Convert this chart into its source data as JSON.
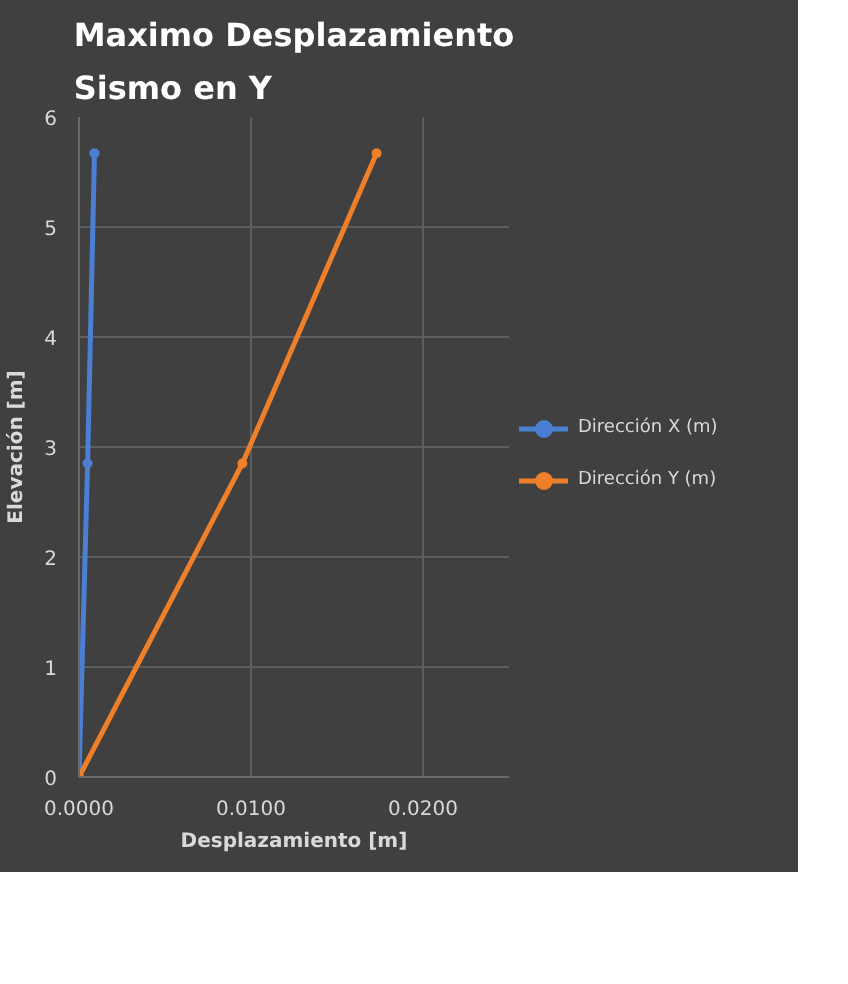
{
  "chart_data": {
    "type": "line",
    "title": "Maximo Desplazamiento Sismo en Y",
    "xlabel": "Desplazamiento [m]",
    "ylabel": "Elevación [m]",
    "xlim": [
      0,
      0.025
    ],
    "xticks": [
      {
        "value": 0,
        "label": "0.0000"
      },
      {
        "value": 0.01,
        "label": "0.0100"
      },
      {
        "value": 0.02,
        "label": "0.0200"
      }
    ],
    "ylim": [
      0,
      6
    ],
    "yticks": [
      0,
      1,
      2,
      3,
      4,
      5,
      6
    ],
    "grid": true,
    "legend": "right",
    "marker": "circle",
    "line_style": "solid",
    "series": [
      {
        "name": "Dirección X (m)",
        "color": "#4a7fd4",
        "x": [
          0,
          0.0005,
          0.0009
        ],
        "values": [
          0,
          2.85,
          5.67
        ]
      },
      {
        "name": "Dirección Y (m)",
        "color": "#f07f2a",
        "x": [
          0,
          0.0095,
          0.0173
        ],
        "values": [
          0,
          2.85,
          5.67
        ]
      }
    ]
  }
}
